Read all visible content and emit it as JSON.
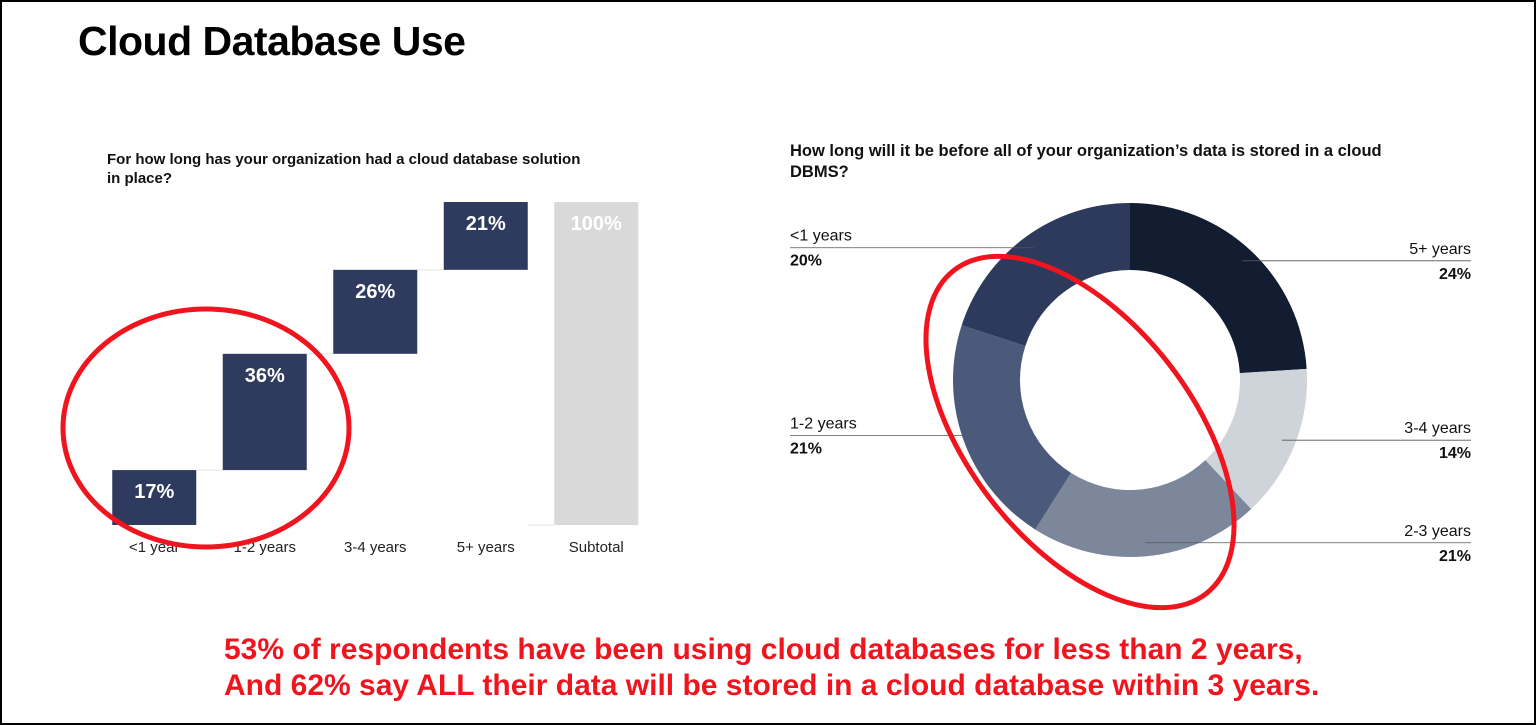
{
  "title": "Cloud Database Use",
  "chart_data": [
    {
      "type": "waterfall",
      "title": "For how long has your organization had a cloud database solution in place?",
      "categories": [
        "<1 year",
        "1-2 years",
        "3-4 years",
        "5+ years",
        "Subtotal"
      ],
      "values": [
        17,
        36,
        26,
        21,
        100
      ],
      "value_labels": [
        "17%",
        "36%",
        "26%",
        "21%",
        "100%"
      ],
      "measure": [
        "relative",
        "relative",
        "relative",
        "relative",
        "total"
      ],
      "colors": [
        "#2e3a5e",
        "#2e3a5e",
        "#2e3a5e",
        "#2e3a5e",
        "#d9d9d9"
      ]
    },
    {
      "type": "donut",
      "title": "How long will it be before all of your organization’s data is stored in a cloud DBMS?",
      "categories": [
        "5+ years",
        "3-4 years",
        "2-3 years",
        "1-2 years",
        "<1 years"
      ],
      "values": [
        24,
        14,
        21,
        21,
        20
      ],
      "value_labels": [
        "24%",
        "14%",
        "21%",
        "21%",
        "20%"
      ],
      "colors": [
        "#121d31",
        "#cfd3da",
        "#7c879c",
        "#4b5a7a",
        "#2d3a5c"
      ]
    }
  ],
  "caption": [
    "53% of respondents have been using cloud databases for less than 2 years,",
    "And 62% say ALL their data will be stored in a cloud database within 3 years."
  ]
}
